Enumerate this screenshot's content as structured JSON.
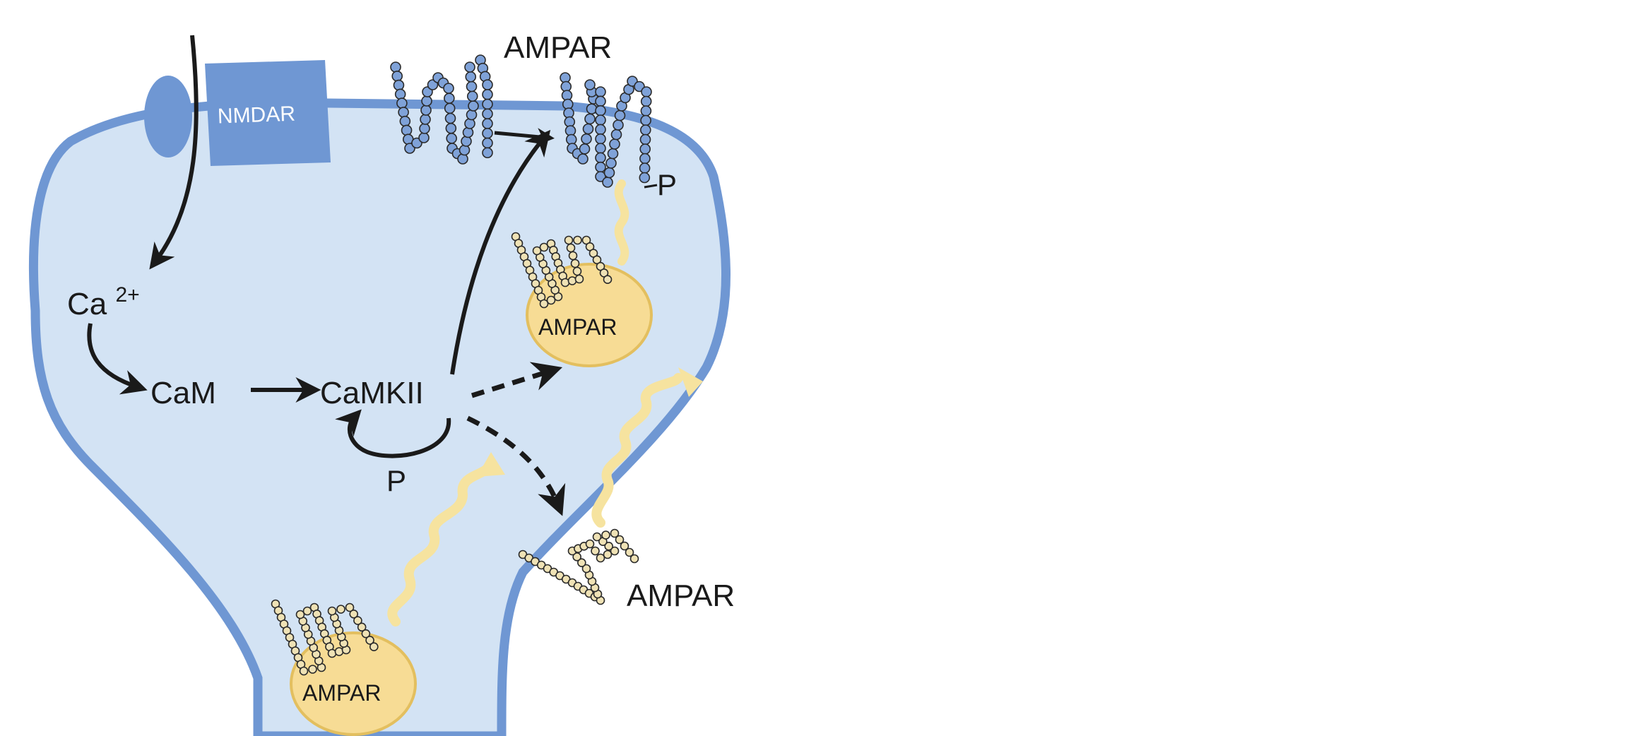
{
  "diagram": {
    "labels": {
      "nmdar": "NMDAR",
      "ampar_top": "AMPAR",
      "phospho_p": "P",
      "ca": "Ca",
      "ca_charge": "2+",
      "cam": "CaM",
      "camkii": "CaMKII",
      "autophos_p": "P",
      "ampar_vesicle_upper": "AMPAR",
      "ampar_lateral": "AMPAR",
      "ampar_vesicle_lower": "AMPAR"
    },
    "colors": {
      "cytoplasm": "#d3e3f4",
      "membrane": "#6f97d3",
      "receptor": "#6f97d3",
      "vesicle": "#f7dc95",
      "vesicle_stroke": "#e3bf5f",
      "wavy_trail": "#f6e39f",
      "arrow": "#1a1a1a",
      "bead_blue": "#7fa2d8",
      "bead_yellow": "#efe2b5"
    }
  }
}
